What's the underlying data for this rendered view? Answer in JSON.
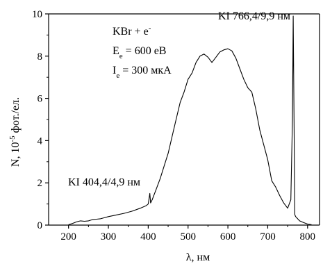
{
  "chart_data": {
    "type": "line",
    "xlabel": "λ, нм",
    "ylabel_parts": {
      "main": "N, 10",
      "sup": "-5",
      "tail": " фот./ел."
    },
    "xlim": [
      150,
      830
    ],
    "ylim": [
      0,
      10
    ],
    "xticks": [
      200,
      300,
      400,
      500,
      600,
      700,
      800
    ],
    "yticks": [
      0,
      2,
      4,
      6,
      8,
      10
    ],
    "grid": false,
    "legend": {
      "line1_main": "KBr + e",
      "line1_sup": "-",
      "line2_main": "E",
      "line2_sub": "e",
      "line2_tail": " = 600 eB",
      "line3_main": "I",
      "line3_sub": "e",
      "line3_tail": " = 300 мкА"
    },
    "annotations": [
      {
        "text": "KI 404,4/4,9 нм"
      },
      {
        "text": "KI 766,4/9,9 нм"
      }
    ],
    "series": [
      {
        "color": "#000000",
        "x": [
          200,
          210,
          220,
          230,
          240,
          250,
          260,
          270,
          280,
          290,
          300,
          320,
          340,
          360,
          380,
          395,
          400,
          404,
          406,
          410,
          420,
          430,
          440,
          450,
          460,
          470,
          480,
          490,
          500,
          510,
          520,
          530,
          540,
          550,
          560,
          570,
          580,
          590,
          600,
          610,
          620,
          630,
          640,
          650,
          660,
          670,
          680,
          690,
          700,
          710,
          720,
          730,
          740,
          750,
          758,
          762,
          764,
          766,
          768,
          770,
          775,
          780,
          790,
          800,
          810
        ],
        "y": [
          0.02,
          0.08,
          0.15,
          0.2,
          0.18,
          0.2,
          0.26,
          0.28,
          0.3,
          0.35,
          0.4,
          0.48,
          0.56,
          0.66,
          0.8,
          0.92,
          1.0,
          1.5,
          1.05,
          1.2,
          1.7,
          2.2,
          2.8,
          3.4,
          4.2,
          5.0,
          5.8,
          6.3,
          6.9,
          7.2,
          7.7,
          8.0,
          8.1,
          7.95,
          7.7,
          7.95,
          8.2,
          8.3,
          8.35,
          8.25,
          7.9,
          7.4,
          6.9,
          6.5,
          6.3,
          5.5,
          4.5,
          3.8,
          3.1,
          2.1,
          1.8,
          1.4,
          1.05,
          0.8,
          1.2,
          5.0,
          9.9,
          5.0,
          0.5,
          0.4,
          0.3,
          0.2,
          0.12,
          0.05,
          0.02
        ]
      }
    ]
  }
}
